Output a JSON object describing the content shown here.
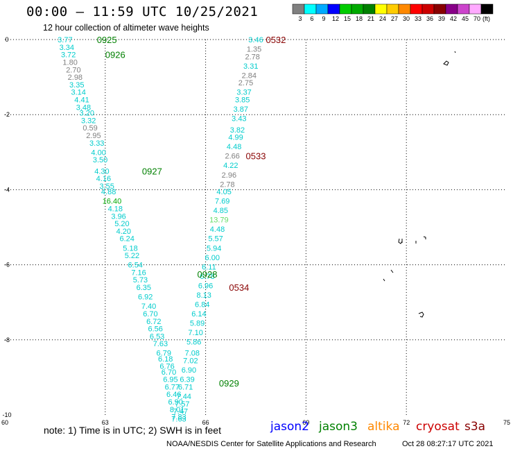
{
  "header": {
    "title": "00:00 — 11:59 UTC 10/25/2021",
    "subtitle": "12 hour collection of altimeter wave heights"
  },
  "colorbar": {
    "labels": [
      "3",
      "6",
      "9",
      "12",
      "15",
      "18",
      "21",
      "24",
      "27",
      "30",
      "33",
      "36",
      "39",
      "42",
      "45",
      "70",
      "(ft)"
    ],
    "colors": [
      "#808080",
      "#00ffff",
      "#00aaff",
      "#0000ff",
      "#00cc00",
      "#00aa00",
      "#008000",
      "#ffff00",
      "#ffcc00",
      "#ff8800",
      "#ff0000",
      "#cc0000",
      "#880000",
      "#880088",
      "#cc44cc",
      "#ffaaff",
      "#000000"
    ]
  },
  "footer": {
    "note": "note: 1) Time is in UTC; 2) SWH is in feet",
    "missions": [
      {
        "name": "jason2",
        "color": "#0000ff"
      },
      {
        "name": "jason3",
        "color": "#008000"
      },
      {
        "name": "altika",
        "color": "#ff8800"
      },
      {
        "name": "cryosat",
        "color": "#cc0000"
      },
      {
        "name": "s3a",
        "color": "#880000"
      }
    ],
    "credit": "NOAA/NESDIS Center for Satellite Applications and Research",
    "timestamp": "Oct 28 08:27:17 UTC 2021"
  },
  "chart_data": {
    "type": "scatter",
    "title": "00:00 — 11:59 UTC 10/25/2021",
    "subtitle": "12 hour collection of altimeter wave heights",
    "xlim": [
      60,
      75
    ],
    "ylim": [
      -10,
      0
    ],
    "xticks": [
      "60",
      "63",
      "66",
      "69",
      "72",
      "75"
    ],
    "yticks": [
      "0",
      "-2",
      "-4",
      "-6",
      "-8",
      "-10"
    ],
    "grid": true,
    "units": "ft",
    "pass_labels": [
      {
        "text": "0925",
        "lon": 62.75,
        "lat": 0.0,
        "color": "#008000"
      },
      {
        "text": "0926",
        "lon": 63.0,
        "lat": -0.4,
        "color": "#008000"
      },
      {
        "text": "0927",
        "lon": 64.1,
        "lat": -3.5,
        "color": "#008000"
      },
      {
        "text": "0928",
        "lon": 65.75,
        "lat": -6.25,
        "color": "#008000"
      },
      {
        "text": "0929",
        "lon": 66.4,
        "lat": -9.15,
        "color": "#008000"
      },
      {
        "text": "0532",
        "lon": 67.8,
        "lat": 0.0,
        "color": "#880000"
      },
      {
        "text": "0533",
        "lon": 67.2,
        "lat": -3.1,
        "color": "#880000"
      },
      {
        "text": "0534",
        "lon": 66.7,
        "lat": -6.6,
        "color": "#880000"
      }
    ],
    "tracks": [
      {
        "name": "jason3",
        "points": [
          {
            "lon": 61.8,
            "lat": 0.0,
            "v": "3.77"
          },
          {
            "lon": 61.85,
            "lat": -0.2,
            "v": "3.34"
          },
          {
            "lon": 61.9,
            "lat": -0.4,
            "v": "3.72"
          },
          {
            "lon": 61.95,
            "lat": -0.6,
            "v": "1.80"
          },
          {
            "lon": 62.05,
            "lat": -0.8,
            "v": "2.70"
          },
          {
            "lon": 62.1,
            "lat": -1.0,
            "v": "2.98"
          },
          {
            "lon": 62.15,
            "lat": -1.2,
            "v": "3.35"
          },
          {
            "lon": 62.2,
            "lat": -1.4,
            "v": "3.14"
          },
          {
            "lon": 62.3,
            "lat": -1.6,
            "v": "4.41"
          },
          {
            "lon": 62.35,
            "lat": -1.8,
            "v": "3.48"
          },
          {
            "lon": 62.45,
            "lat": -1.95,
            "v": "3.20"
          },
          {
            "lon": 62.5,
            "lat": -2.15,
            "v": "3.32"
          },
          {
            "lon": 62.55,
            "lat": -2.35,
            "v": "0.59"
          },
          {
            "lon": 62.65,
            "lat": -2.55,
            "v": "2.95"
          },
          {
            "lon": 62.75,
            "lat": -2.75,
            "v": "3.33"
          },
          {
            "lon": 62.8,
            "lat": -3.0,
            "v": "4.00"
          },
          {
            "lon": 62.85,
            "lat": -3.2,
            "v": "3.50"
          },
          {
            "lon": 62.9,
            "lat": -3.5,
            "v": "4.30"
          },
          {
            "lon": 62.95,
            "lat": -3.7,
            "v": "4.16"
          },
          {
            "lon": 63.05,
            "lat": -3.9,
            "v": "3.55"
          },
          {
            "lon": 63.1,
            "lat": -4.05,
            "v": "4.88"
          },
          {
            "lon": 63.2,
            "lat": -4.3,
            "v": "16.40",
            "color": "#00aa00"
          },
          {
            "lon": 63.3,
            "lat": -4.5,
            "v": "4.18"
          },
          {
            "lon": 63.4,
            "lat": -4.7,
            "v": "3.96"
          },
          {
            "lon": 63.5,
            "lat": -4.9,
            "v": "5.20"
          },
          {
            "lon": 63.55,
            "lat": -5.1,
            "v": "4.20"
          },
          {
            "lon": 63.65,
            "lat": -5.3,
            "v": "6.24"
          },
          {
            "lon": 63.75,
            "lat": -5.55,
            "v": "5.18"
          },
          {
            "lon": 63.8,
            "lat": -5.75,
            "v": "5.22"
          },
          {
            "lon": 63.9,
            "lat": -6.0,
            "v": "6.54"
          },
          {
            "lon": 64.0,
            "lat": -6.2,
            "v": "7.16"
          },
          {
            "lon": 64.05,
            "lat": -6.4,
            "v": "5.73"
          },
          {
            "lon": 64.15,
            "lat": -6.6,
            "v": "6.35"
          },
          {
            "lon": 64.2,
            "lat": -6.85,
            "v": "6.92"
          },
          {
            "lon": 64.3,
            "lat": -7.1,
            "v": "7.40"
          },
          {
            "lon": 64.35,
            "lat": -7.3,
            "v": "6.70"
          },
          {
            "lon": 64.45,
            "lat": -7.5,
            "v": "6.72"
          },
          {
            "lon": 64.5,
            "lat": -7.7,
            "v": "6.56"
          },
          {
            "lon": 64.55,
            "lat": -7.9,
            "v": "6.53"
          },
          {
            "lon": 64.65,
            "lat": -8.1,
            "v": "7.63"
          },
          {
            "lon": 64.75,
            "lat": -8.35,
            "v": "6.79"
          },
          {
            "lon": 64.8,
            "lat": -8.5,
            "v": "6.18"
          },
          {
            "lon": 64.85,
            "lat": -8.7,
            "v": "6.76"
          },
          {
            "lon": 64.9,
            "lat": -8.85,
            "v": "6.70"
          },
          {
            "lon": 64.95,
            "lat": -9.05,
            "v": "6.95"
          },
          {
            "lon": 65.0,
            "lat": -9.25,
            "v": "6.77"
          },
          {
            "lon": 65.05,
            "lat": -9.45,
            "v": "6.46"
          },
          {
            "lon": 65.1,
            "lat": -9.65,
            "v": "6.90"
          },
          {
            "lon": 65.15,
            "lat": -9.85,
            "v": "8.01"
          },
          {
            "lon": 65.2,
            "lat": -10.1,
            "v": "7.63"
          }
        ]
      },
      {
        "name": "s3a",
        "points": [
          {
            "lon": 67.5,
            "lat": 0.0,
            "v": "3.46"
          },
          {
            "lon": 67.45,
            "lat": -0.25,
            "v": "1.35"
          },
          {
            "lon": 67.4,
            "lat": -0.45,
            "v": "2.78"
          },
          {
            "lon": 67.35,
            "lat": -0.7,
            "v": "3.31"
          },
          {
            "lon": 67.3,
            "lat": -0.95,
            "v": "2.84"
          },
          {
            "lon": 67.2,
            "lat": -1.15,
            "v": "2.75"
          },
          {
            "lon": 67.15,
            "lat": -1.4,
            "v": "3.37"
          },
          {
            "lon": 67.1,
            "lat": -1.6,
            "v": "3.85"
          },
          {
            "lon": 67.05,
            "lat": -1.85,
            "v": "3.87"
          },
          {
            "lon": 67.0,
            "lat": -2.1,
            "v": "3.43"
          },
          {
            "lon": 66.95,
            "lat": -2.4,
            "v": "3.82"
          },
          {
            "lon": 66.9,
            "lat": -2.6,
            "v": "4.99"
          },
          {
            "lon": 66.85,
            "lat": -2.85,
            "v": "4.48"
          },
          {
            "lon": 66.8,
            "lat": -3.1,
            "v": "2.66"
          },
          {
            "lon": 66.75,
            "lat": -3.35,
            "v": "4.22"
          },
          {
            "lon": 66.7,
            "lat": -3.6,
            "v": "2.96"
          },
          {
            "lon": 66.65,
            "lat": -3.85,
            "v": "2.78"
          },
          {
            "lon": 66.55,
            "lat": -4.05,
            "v": "4.05"
          },
          {
            "lon": 66.5,
            "lat": -4.3,
            "v": "7.69"
          },
          {
            "lon": 66.45,
            "lat": -4.55,
            "v": "4.85"
          },
          {
            "lon": 66.4,
            "lat": -4.8,
            "v": "13.79",
            "color": "#66dd66"
          },
          {
            "lon": 66.35,
            "lat": -5.05,
            "v": "4.48"
          },
          {
            "lon": 66.3,
            "lat": -5.3,
            "v": "5.57"
          },
          {
            "lon": 66.25,
            "lat": -5.55,
            "v": "5.94"
          },
          {
            "lon": 66.2,
            "lat": -5.8,
            "v": "6.00"
          },
          {
            "lon": 66.1,
            "lat": -6.05,
            "v": "6.11"
          },
          {
            "lon": 66.05,
            "lat": -6.3,
            "v": "6.78"
          },
          {
            "lon": 66.0,
            "lat": -6.55,
            "v": "6.96"
          },
          {
            "lon": 65.95,
            "lat": -6.8,
            "v": "8.13"
          },
          {
            "lon": 65.9,
            "lat": -7.05,
            "v": "6.84"
          },
          {
            "lon": 65.8,
            "lat": -7.3,
            "v": "6.14"
          },
          {
            "lon": 65.75,
            "lat": -7.55,
            "v": "5.89"
          },
          {
            "lon": 65.7,
            "lat": -7.8,
            "v": "7.10"
          },
          {
            "lon": 65.65,
            "lat": -8.05,
            "v": "5.86"
          },
          {
            "lon": 65.6,
            "lat": -8.35,
            "v": "7.08"
          },
          {
            "lon": 65.55,
            "lat": -8.55,
            "v": "7.02"
          },
          {
            "lon": 65.5,
            "lat": -8.8,
            "v": "6.90"
          },
          {
            "lon": 65.45,
            "lat": -9.05,
            "v": "6.39"
          },
          {
            "lon": 65.4,
            "lat": -9.25,
            "v": "6.71"
          },
          {
            "lon": 65.35,
            "lat": -9.5,
            "v": "7.44"
          },
          {
            "lon": 65.3,
            "lat": -9.7,
            "v": "7.57"
          },
          {
            "lon": 65.25,
            "lat": -9.9,
            "v": "7.47"
          },
          {
            "lon": 65.2,
            "lat": -10.05,
            "v": "7.83"
          }
        ]
      }
    ]
  }
}
